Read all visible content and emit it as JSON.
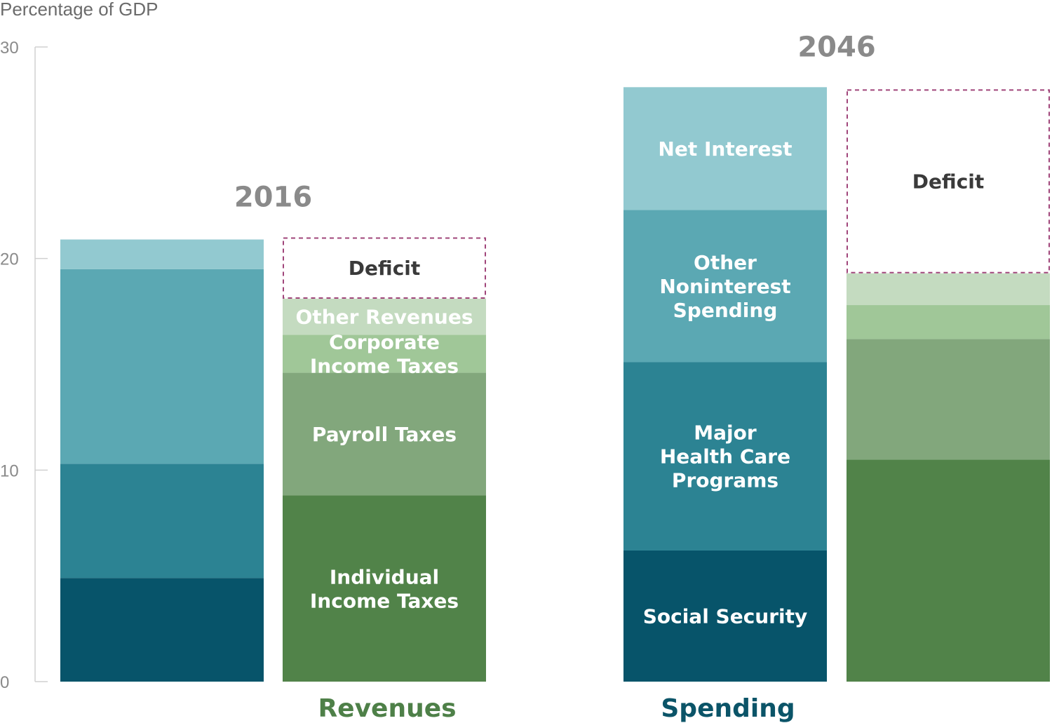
{
  "chart_data": {
    "type": "bar",
    "stacked": true,
    "ylabel": "Percentage of GDP",
    "ylim": [
      0,
      30
    ],
    "yticks": [
      "0",
      "10",
      "20",
      "30"
    ],
    "categories": [
      "Spending",
      "Revenues"
    ],
    "groups": [
      {
        "year": "2016",
        "bars": [
          {
            "category": "Spending",
            "segments": [
              {
                "name": "Social Security",
                "value": 4.9
              },
              {
                "name": "Major Health Care Programs",
                "value": 5.4
              },
              {
                "name": "Other Noninterest Spending",
                "value": 9.2
              },
              {
                "name": "Net Interest",
                "value": 1.4
              }
            ]
          },
          {
            "category": "Revenues",
            "segments": [
              {
                "name": "Individual Income Taxes",
                "value": 8.8
              },
              {
                "name": "Payroll Taxes",
                "value": 5.8
              },
              {
                "name": "Corporate Income Taxes",
                "value": 1.8
              },
              {
                "name": "Other Revenues",
                "value": 1.7
              },
              {
                "name": "Deficit",
                "value": 2.9,
                "dashed": true
              }
            ]
          }
        ]
      },
      {
        "year": "2046",
        "bars": [
          {
            "category": "Spending",
            "segments": [
              {
                "name": "Social Security",
                "value": 6.2
              },
              {
                "name": "Major Health Care Programs",
                "value": 8.9
              },
              {
                "name": "Other Noninterest Spending",
                "value": 7.2
              },
              {
                "name": "Net Interest",
                "value": 5.8
              }
            ]
          },
          {
            "category": "Revenues",
            "segments": [
              {
                "name": "Individual Income Taxes",
                "value": 10.5
              },
              {
                "name": "Payroll Taxes",
                "value": 5.7
              },
              {
                "name": "Corporate Income Taxes",
                "value": 1.6
              },
              {
                "name": "Other Revenues",
                "value": 1.5
              },
              {
                "name": "Deficit",
                "value": 8.7,
                "dashed": true
              }
            ]
          }
        ]
      }
    ],
    "visible_segment_labels": [
      {
        "year": "2016",
        "category": "Revenues",
        "segment": "Deficit",
        "text": [
          "Deficit"
        ],
        "color": "#3a3a3a"
      },
      {
        "year": "2016",
        "category": "Revenues",
        "segment": "Other Revenues",
        "text": [
          "Other Revenues"
        ],
        "color": "#ffffff"
      },
      {
        "year": "2016",
        "category": "Revenues",
        "segment": "Corporate Income Taxes",
        "text": [
          "Corporate",
          "Income Taxes"
        ],
        "color": "#ffffff"
      },
      {
        "year": "2016",
        "category": "Revenues",
        "segment": "Payroll Taxes",
        "text": [
          "Payroll Taxes"
        ],
        "color": "#ffffff"
      },
      {
        "year": "2016",
        "category": "Revenues",
        "segment": "Individual Income Taxes",
        "text": [
          "Individual",
          "Income Taxes"
        ],
        "color": "#ffffff"
      },
      {
        "year": "2046",
        "category": "Spending",
        "segment": "Net Interest",
        "text": [
          "Net Interest"
        ],
        "color": "#ffffff"
      },
      {
        "year": "2046",
        "category": "Spending",
        "segment": "Other Noninterest Spending",
        "text": [
          "Other",
          "Noninterest",
          "Spending"
        ],
        "color": "#ffffff"
      },
      {
        "year": "2046",
        "category": "Spending",
        "segment": "Major Health Care Programs",
        "text": [
          "Major",
          "Health Care",
          "Programs"
        ],
        "color": "#ffffff"
      },
      {
        "year": "2046",
        "category": "Spending",
        "segment": "Social Security",
        "text": [
          "Social Security"
        ],
        "color": "#ffffff"
      },
      {
        "year": "2046",
        "category": "Revenues",
        "segment": "Deficit",
        "text": [
          "Deficit"
        ],
        "color": "#3a3a3a"
      }
    ],
    "category_labels": [
      {
        "text": "Revenues",
        "color": "#4e8048"
      },
      {
        "text": "Spending",
        "color": "#0b5468"
      }
    ],
    "colors": {
      "Social Security": "#07546a",
      "Major Health Care Programs": "#2c8393",
      "Other Noninterest Spending": "#5ba8b3",
      "Net Interest": "#92c9d0",
      "Individual Income Taxes": "#518349",
      "Payroll Taxes": "#82a77c",
      "Corporate Income Taxes": "#a0c798",
      "Other Revenues": "#c4dbc0",
      "Deficit": "#ffffff",
      "deficit_border": "#a0457a",
      "axis": "#d0d0d0"
    },
    "grid": false,
    "legend": "none"
  }
}
